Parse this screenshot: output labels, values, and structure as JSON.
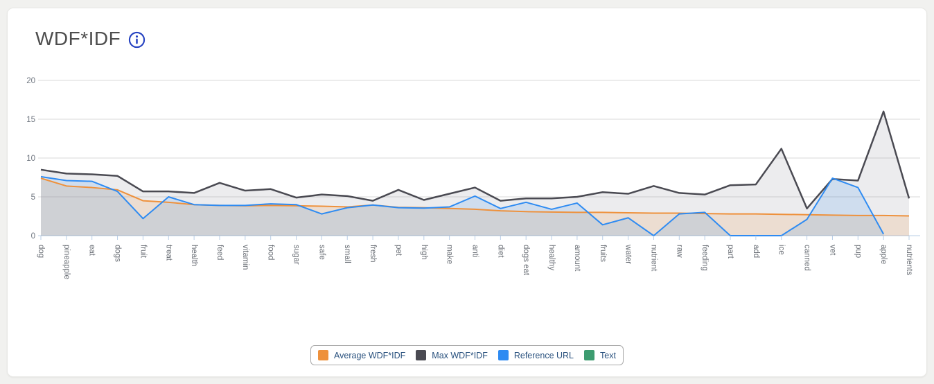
{
  "header": {
    "title": "WDF*IDF",
    "info_icon": "info-circle",
    "info_color": "#2441c0"
  },
  "colors": {
    "card_bg": "#ffffff",
    "page_bg": "#f1f1ef",
    "grid_line": "#d9d9d9",
    "axis_line": "#b7cde6",
    "tick_label": "#6f7680",
    "category_label": "#686d74",
    "legend_text": "#29517e",
    "legend_border": "#a9a9a9"
  },
  "chart_data": {
    "type": "area",
    "title": "WDF*IDF",
    "xlabel": "",
    "ylabel": "",
    "ylim": [
      0,
      20
    ],
    "yticks": [
      0,
      5,
      10,
      15,
      20
    ],
    "grid": true,
    "legend_position": "bottom",
    "categories": [
      "dog",
      "pineapple",
      "eat",
      "dogs",
      "fruit",
      "treat",
      "health",
      "feed",
      "vitamin",
      "food",
      "sugar",
      "safe",
      "small",
      "fresh",
      "pet",
      "high",
      "make",
      "anti",
      "diet",
      "dogs eat",
      "healthy",
      "amount",
      "fruits",
      "water",
      "nutrient",
      "raw",
      "feeding",
      "part",
      "add",
      "ice",
      "canned",
      "vet",
      "pup",
      "apple",
      "nutrients"
    ],
    "series": [
      {
        "name": "Max WDF*IDF",
        "color": "#4a4a52",
        "fill": "rgba(110,110,122,0.13)",
        "line_width": 2.5,
        "values": [
          8.5,
          8.0,
          7.9,
          7.7,
          5.7,
          5.7,
          5.5,
          6.8,
          5.8,
          6.0,
          4.9,
          5.3,
          5.1,
          4.5,
          5.9,
          4.6,
          5.4,
          6.2,
          4.5,
          4.8,
          4.8,
          5.0,
          5.6,
          5.4,
          6.4,
          5.5,
          5.3,
          6.5,
          6.6,
          11.2,
          3.5,
          7.3,
          7.1,
          16.0,
          4.8
        ]
      },
      {
        "name": "Average WDF*IDF",
        "color": "#ee913c",
        "fill": "rgba(238,145,60,0.16)",
        "line_width": 2,
        "values": [
          7.4,
          6.4,
          6.2,
          5.9,
          4.5,
          4.3,
          4.0,
          3.9,
          3.85,
          3.9,
          3.85,
          3.8,
          3.7,
          3.95,
          3.65,
          3.6,
          3.5,
          3.4,
          3.2,
          3.1,
          3.05,
          3.0,
          3.0,
          2.95,
          2.9,
          2.9,
          2.85,
          2.8,
          2.8,
          2.75,
          2.7,
          2.65,
          2.6,
          2.6,
          2.55
        ]
      },
      {
        "name": "Reference URL",
        "color": "#2e8bf2",
        "fill": "rgba(46,139,242,0.15)",
        "line_width": 2,
        "values": [
          7.6,
          7.1,
          7.0,
          5.7,
          2.2,
          5.0,
          4.0,
          3.9,
          3.9,
          4.1,
          4.0,
          2.8,
          3.6,
          3.95,
          3.6,
          3.55,
          3.7,
          5.1,
          3.5,
          4.3,
          3.4,
          4.2,
          1.4,
          2.3,
          0,
          2.8,
          3.0,
          0,
          0,
          0,
          2.1,
          7.4,
          6.2,
          0.2,
          null
        ]
      },
      {
        "name": "Text",
        "color": "#3d9c70",
        "fill": "rgba(61,156,112,0.15)",
        "line_width": 2,
        "values": []
      }
    ]
  },
  "legend": {
    "order": [
      "Average WDF*IDF",
      "Max WDF*IDF",
      "Reference URL",
      "Text"
    ]
  }
}
